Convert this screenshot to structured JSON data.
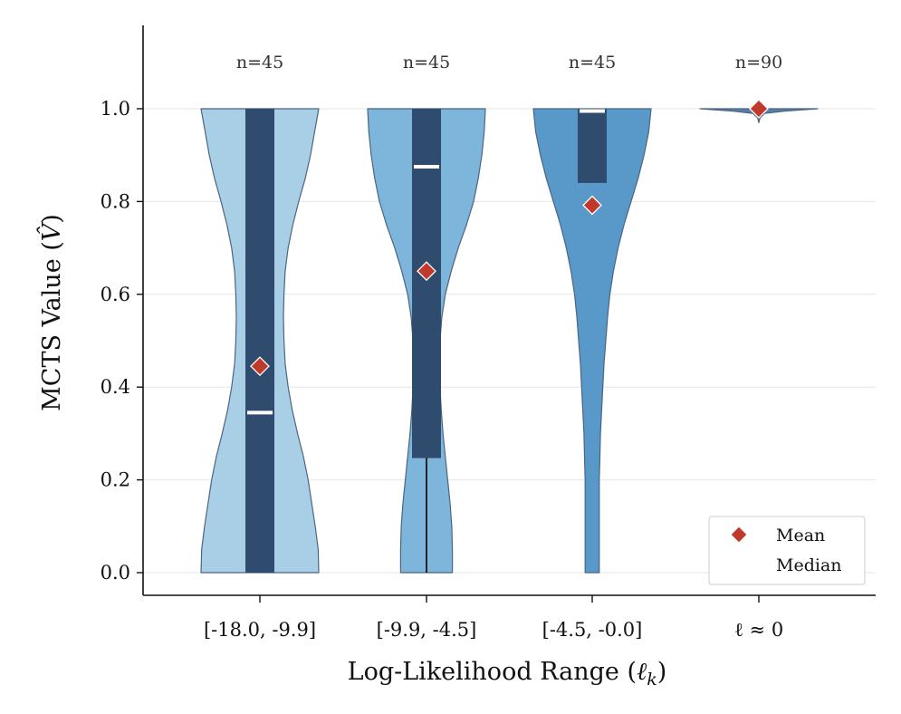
{
  "chart_data": {
    "type": "violin",
    "xlabel": "Log-Likelihood Range (ℓk)",
    "ylabel": "MCTS Value (V̂)",
    "ylim": [
      -0.05,
      1.18
    ],
    "yticks": [
      0.0,
      0.2,
      0.4,
      0.6,
      0.8,
      1.0
    ],
    "ytick_labels": [
      "0.0",
      "0.2",
      "0.4",
      "0.6",
      "0.8",
      "1.0"
    ],
    "grid": "horizontal",
    "legend": {
      "placement": "lower-right",
      "entries": [
        {
          "label": "Mean",
          "marker": "diamond",
          "color": "#c0392b"
        },
        {
          "label": "Median",
          "marker": "line",
          "color": "#ffffff"
        }
      ]
    },
    "categories": [
      "[-18.0, -9.9]",
      "[-9.9, -4.5]",
      "[-4.5, -0.0]",
      "ℓ ≈ 0"
    ],
    "groups": [
      {
        "label": "[-18.0, -9.9]",
        "n_label": "n=45",
        "color": "#a9cfe6",
        "mean": 0.445,
        "median": 0.345,
        "q1": 0.0,
        "q3": 1.0,
        "whisker_low": 0.0,
        "whisker_high": 1.0,
        "density_profile": [
          [
            0.0,
            0.5
          ],
          [
            0.05,
            0.495
          ],
          [
            0.1,
            0.47
          ],
          [
            0.15,
            0.44
          ],
          [
            0.2,
            0.41
          ],
          [
            0.25,
            0.37
          ],
          [
            0.3,
            0.32
          ],
          [
            0.35,
            0.275
          ],
          [
            0.4,
            0.24
          ],
          [
            0.45,
            0.215
          ],
          [
            0.5,
            0.205
          ],
          [
            0.55,
            0.2
          ],
          [
            0.6,
            0.205
          ],
          [
            0.65,
            0.215
          ],
          [
            0.7,
            0.24
          ],
          [
            0.75,
            0.28
          ],
          [
            0.8,
            0.33
          ],
          [
            0.85,
            0.385
          ],
          [
            0.9,
            0.43
          ],
          [
            0.95,
            0.465
          ],
          [
            1.0,
            0.5
          ]
        ]
      },
      {
        "label": "[-9.9, -4.5]",
        "n_label": "n=45",
        "color": "#7eb5db",
        "mean": 0.65,
        "median": 0.875,
        "q1": 0.247,
        "q3": 1.0,
        "whisker_low": 0.0,
        "whisker_high": 1.0,
        "density_profile": [
          [
            0.0,
            0.22
          ],
          [
            0.05,
            0.22
          ],
          [
            0.1,
            0.215
          ],
          [
            0.15,
            0.2
          ],
          [
            0.2,
            0.18
          ],
          [
            0.25,
            0.16
          ],
          [
            0.3,
            0.14
          ],
          [
            0.35,
            0.125
          ],
          [
            0.4,
            0.115
          ],
          [
            0.45,
            0.11
          ],
          [
            0.5,
            0.115
          ],
          [
            0.55,
            0.13
          ],
          [
            0.6,
            0.16
          ],
          [
            0.65,
            0.21
          ],
          [
            0.7,
            0.27
          ],
          [
            0.75,
            0.34
          ],
          [
            0.8,
            0.4
          ],
          [
            0.85,
            0.44
          ],
          [
            0.9,
            0.47
          ],
          [
            0.95,
            0.49
          ],
          [
            1.0,
            0.5
          ]
        ]
      },
      {
        "label": "[-4.5, -0.0]",
        "n_label": "n=45",
        "color": "#5899c9",
        "mean": 0.792,
        "median": 0.995,
        "q1": 0.84,
        "q3": 1.0,
        "whisker_low": 0.84,
        "whisker_high": 1.0,
        "density_profile": [
          [
            0.0,
            0.06
          ],
          [
            0.05,
            0.06
          ],
          [
            0.1,
            0.06
          ],
          [
            0.15,
            0.06
          ],
          [
            0.2,
            0.06
          ],
          [
            0.25,
            0.065
          ],
          [
            0.3,
            0.07
          ],
          [
            0.35,
            0.08
          ],
          [
            0.4,
            0.09
          ],
          [
            0.45,
            0.1
          ],
          [
            0.5,
            0.115
          ],
          [
            0.55,
            0.13
          ],
          [
            0.6,
            0.15
          ],
          [
            0.65,
            0.18
          ],
          [
            0.7,
            0.22
          ],
          [
            0.75,
            0.27
          ],
          [
            0.8,
            0.33
          ],
          [
            0.85,
            0.39
          ],
          [
            0.9,
            0.44
          ],
          [
            0.95,
            0.48
          ],
          [
            1.0,
            0.5
          ]
        ]
      },
      {
        "label": "ℓ ≈ 0",
        "n_label": "n=90",
        "color": "#5b7fa6",
        "mean": 1.0,
        "median": 1.0,
        "q1": 1.0,
        "q3": 1.0,
        "whisker_low": 1.0,
        "whisker_high": 1.0,
        "density_profile": [
          [
            0.97,
            0.0
          ],
          [
            0.98,
            0.01
          ],
          [
            0.99,
            0.05
          ],
          [
            0.995,
            0.22
          ],
          [
            1.0,
            0.5
          ]
        ]
      }
    ]
  }
}
